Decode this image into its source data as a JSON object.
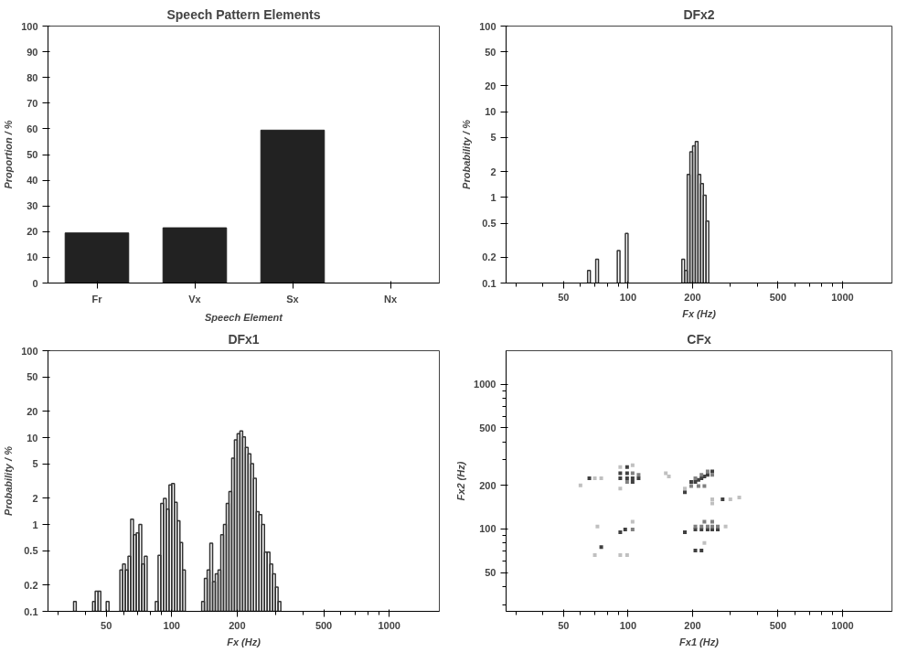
{
  "chart_data": [
    {
      "type": "bar",
      "title": "Speech Pattern Elements",
      "xlabel": "Speech Element",
      "ylabel": "Proportion / %",
      "categories": [
        "Fr",
        "Vx",
        "Sx",
        "Nx"
      ],
      "values": [
        19.5,
        21.5,
        59.5,
        null
      ],
      "color": "#222222",
      "ylim": [
        0,
        100
      ],
      "yticks": [
        0,
        10,
        20,
        30,
        40,
        50,
        60,
        70,
        80,
        90,
        100
      ],
      "grid": false
    },
    {
      "type": "histogram",
      "title": "DFx2",
      "xlabel": "Fx (Hz)",
      "ylabel": "Probability / %",
      "log": "xy",
      "color": "#333333",
      "grid": false,
      "bins": [
        64.8,
        66.7,
        68.7,
        70.7,
        72.8,
        74.9,
        77.1,
        79.4,
        81.7,
        84.1,
        86.6,
        89.1,
        91.7,
        94.4,
        97.2,
        100,
        102.9,
        105.9,
        109.1,
        112.2,
        115.5,
        118.9,
        122.4,
        126.0,
        129.7,
        133.5,
        137.4,
        141.4,
        145.6,
        149.8,
        154.2,
        158.7,
        163.4,
        168.2,
        173.1,
        178.2,
        183.4,
        188.8,
        194.3,
        200,
        205.9,
        211.9,
        218.1,
        224.5,
        231.1,
        237.8
      ],
      "values": [
        0.14,
        null,
        null,
        0.19,
        null,
        null,
        null,
        null,
        null,
        null,
        null,
        0.24,
        null,
        null,
        0.38,
        null,
        null,
        null,
        null,
        null,
        null,
        null,
        null,
        null,
        null,
        null,
        null,
        null,
        null,
        null,
        null,
        null,
        null,
        null,
        null,
        0.19,
        0.14,
        1.85,
        3.4,
        4.0,
        4.5,
        1.85,
        1.45,
        1.06,
        0.53
      ],
      "xlim": [
        27,
        1700
      ],
      "ylim": [
        0.1,
        100
      ],
      "xticks": [
        {
          "value": 30,
          "label": null
        },
        {
          "value": 40,
          "label": null
        },
        50,
        {
          "value": 60,
          "label": null
        },
        {
          "value": 70,
          "label": null
        },
        {
          "value": 80,
          "label": null
        },
        {
          "value": 90,
          "label": null
        },
        100,
        200,
        {
          "value": 300,
          "label": null
        },
        {
          "value": 400,
          "label": null
        },
        500,
        {
          "value": 600,
          "label": null
        },
        {
          "value": 700,
          "label": null
        },
        {
          "value": 800,
          "label": null
        },
        {
          "value": 900,
          "label": null
        },
        1000
      ],
      "yticks": [
        0.1,
        0.2,
        0.5,
        1,
        2,
        5,
        10,
        20,
        50,
        100
      ]
    },
    {
      "type": "histogram",
      "title": "DFx1",
      "xlabel": "Fx (Hz)",
      "ylabel": "Probability / %",
      "log": "xy",
      "color": "#333333",
      "grid": false,
      "bins": [
        35.4,
        36.4,
        37.5,
        38.6,
        39.7,
        40.8,
        42.0,
        43.3,
        44.5,
        45.9,
        47.2,
        48.6,
        50,
        51.5,
        53.0,
        54.5,
        56.1,
        57.8,
        59.5,
        61.2,
        63.0,
        64.8,
        66.7,
        68.7,
        70.7,
        72.8,
        74.9,
        77.1,
        79.4,
        81.7,
        84.1,
        86.6,
        89.1,
        91.7,
        94.4,
        97.2,
        100,
        102.9,
        105.9,
        109.1,
        112.2,
        115.5,
        118.9,
        122.4,
        126.0,
        129.7,
        133.5,
        137.4,
        141.4,
        145.6,
        149.8,
        154.2,
        158.7,
        163.4,
        168.2,
        173.1,
        178.2,
        183.4,
        188.8,
        194.3,
        200,
        205.9,
        211.9,
        218.1,
        224.5,
        231.1,
        237.8,
        244.8,
        252.0,
        259.4,
        267.0,
        274.8,
        282.8,
        291.1,
        299.7,
        308.4,
        317.5
      ],
      "values": [
        0.13,
        null,
        null,
        null,
        null,
        null,
        null,
        0.13,
        0.17,
        0.17,
        null,
        null,
        0.13,
        null,
        null,
        null,
        null,
        0.3,
        0.35,
        0.3,
        0.43,
        1.15,
        0.76,
        0.8,
        1.0,
        0.35,
        0.43,
        null,
        null,
        null,
        0.13,
        0.44,
        1.75,
        2.0,
        1.5,
        2.85,
        2.95,
        1.8,
        1.1,
        0.62,
        0.3,
        null,
        null,
        null,
        null,
        null,
        null,
        0.13,
        0.24,
        0.3,
        0.61,
        0.22,
        0.27,
        0.3,
        0.76,
        1.0,
        1.75,
        2.4,
        5.8,
        9.4,
        11.1,
        11.9,
        10.2,
        7.7,
        6.5,
        5.0,
        3.4,
        1.4,
        1.3,
        1.0,
        0.48,
        0.48,
        0.35,
        0.27,
        0.19,
        0.13
      ],
      "xlim": [
        27,
        1700
      ],
      "ylim": [
        0.1,
        100
      ],
      "xticks": [
        {
          "value": 30,
          "label": null
        },
        {
          "value": 40,
          "label": null
        },
        50,
        {
          "value": 60,
          "label": null
        },
        {
          "value": 70,
          "label": null
        },
        {
          "value": 80,
          "label": null
        },
        {
          "value": 90,
          "label": null
        },
        100,
        200,
        {
          "value": 300,
          "label": null
        },
        {
          "value": 400,
          "label": null
        },
        500,
        {
          "value": 600,
          "label": null
        },
        {
          "value": 700,
          "label": null
        },
        {
          "value": 800,
          "label": null
        },
        {
          "value": 900,
          "label": null
        },
        1000
      ],
      "yticks": [
        0.1,
        0.2,
        0.5,
        1,
        2,
        5,
        10,
        20,
        50,
        100
      ]
    },
    {
      "type": "scatter",
      "title": "CFx",
      "xlabel": "Fx1 (Hz)",
      "ylabel": "Fx2 (Hz)",
      "log": "xy",
      "marker": "square",
      "grid": false,
      "x": [
        66,
        99,
        92,
        99,
        92,
        99,
        105,
        112,
        105,
        92,
        97,
        206,
        213,
        220,
        227,
        235,
        247,
        197,
        184,
        276,
        75,
        206,
        220,
        206,
        220,
        235,
        247,
        184,
        262,
        105,
        112,
        99,
        105,
        197,
        213,
        227,
        206,
        220,
        235,
        247,
        220,
        235,
        247,
        206,
        227,
        247,
        262,
        92,
        105,
        92,
        75,
        70,
        72,
        105,
        150,
        155,
        184,
        247,
        247,
        300,
        330,
        285,
        70,
        92,
        99,
        227,
        60
      ],
      "values": [
        224,
        267,
        242,
        242,
        224,
        224,
        224,
        224,
        211,
        95,
        99,
        211,
        218,
        224,
        230,
        236,
        250,
        211,
        179,
        160,
        75,
        71,
        71,
        99,
        99,
        99,
        99,
        95,
        99,
        242,
        236,
        211,
        99,
        198,
        198,
        198,
        224,
        236,
        250,
        236,
        104,
        104,
        104,
        104,
        112,
        112,
        104,
        267,
        275,
        190,
        224,
        224,
        104,
        112,
        242,
        230,
        190,
        160,
        150,
        160,
        165,
        104,
        66,
        66,
        66,
        80,
        200
      ],
      "colors": [
        "#404040",
        "#404040",
        "#404040",
        "#404040",
        "#404040",
        "#404040",
        "#404040",
        "#404040",
        "#404040",
        "#404040",
        "#404040",
        "#404040",
        "#404040",
        "#404040",
        "#404040",
        "#404040",
        "#404040",
        "#404040",
        "#404040",
        "#404040",
        "#404040",
        "#404040",
        "#404040",
        "#404040",
        "#404040",
        "#404040",
        "#404040",
        "#404040",
        "#404040",
        "#808080",
        "#808080",
        "#808080",
        "#808080",
        "#808080",
        "#808080",
        "#808080",
        "#808080",
        "#808080",
        "#808080",
        "#808080",
        "#808080",
        "#808080",
        "#808080",
        "#808080",
        "#808080",
        "#808080",
        "#808080",
        "#c0c0c0",
        "#c0c0c0",
        "#c0c0c0",
        "#c0c0c0",
        "#c0c0c0",
        "#c0c0c0",
        "#c0c0c0",
        "#c0c0c0",
        "#c0c0c0",
        "#c0c0c0",
        "#c0c0c0",
        "#c0c0c0",
        "#c0c0c0",
        "#c0c0c0",
        "#c0c0c0",
        "#c0c0c0",
        "#c0c0c0",
        "#c0c0c0",
        "#c0c0c0",
        "#c0c0c0"
      ],
      "xlim": [
        27,
        1700
      ],
      "ylim": [
        27,
        1700
      ],
      "xticks": [
        {
          "value": 30,
          "label": null
        },
        {
          "value": 40,
          "label": null
        },
        50,
        {
          "value": 60,
          "label": null
        },
        {
          "value": 70,
          "label": null
        },
        {
          "value": 80,
          "label": null
        },
        {
          "value": 90,
          "label": null
        },
        100,
        200,
        {
          "value": 300,
          "label": null
        },
        {
          "value": 400,
          "label": null
        },
        500,
        {
          "value": 600,
          "label": null
        },
        {
          "value": 700,
          "label": null
        },
        {
          "value": 800,
          "label": null
        },
        {
          "value": 900,
          "label": null
        },
        1000
      ],
      "yticks": [
        {
          "value": 30,
          "label": null
        },
        {
          "value": 40,
          "label": null
        },
        50,
        {
          "value": 60,
          "label": null
        },
        {
          "value": 70,
          "label": null
        },
        {
          "value": 80,
          "label": null
        },
        {
          "value": 90,
          "label": null
        },
        100,
        200,
        {
          "value": 300,
          "label": null
        },
        {
          "value": 400,
          "label": null
        },
        500,
        {
          "value": 600,
          "label": null
        },
        {
          "value": 700,
          "label": null
        },
        {
          "value": 800,
          "label": null
        },
        {
          "value": 900,
          "label": null
        },
        1000
      ]
    }
  ]
}
